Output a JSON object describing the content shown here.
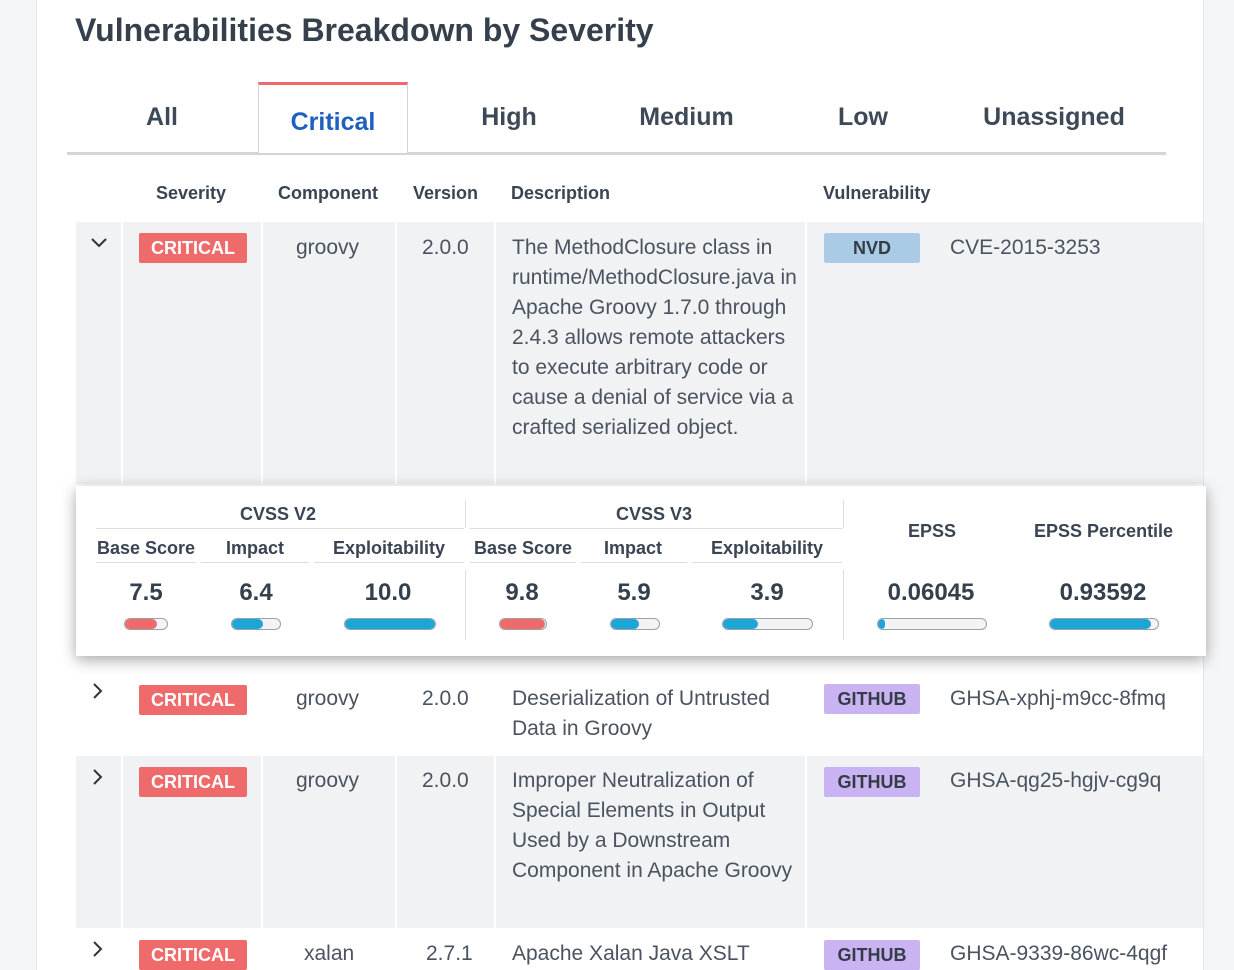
{
  "title": "Vulnerabilities Breakdown by Severity",
  "tabs": [
    {
      "label": "All"
    },
    {
      "label": "Critical"
    },
    {
      "label": "High"
    },
    {
      "label": "Medium"
    },
    {
      "label": "Low"
    },
    {
      "label": "Unassigned"
    }
  ],
  "columns": {
    "severity": "Severity",
    "component": "Component",
    "version": "Version",
    "description": "Description",
    "vulnerability": "Vulnerability"
  },
  "colors": {
    "critical": "#ef6b6b",
    "nvd": "#a9cbe5",
    "github": "#c9b3f2",
    "accent_tab": "#1f5fbf",
    "bar_blue": "#1ea5d8",
    "bar_red": "#ef6b6b"
  },
  "rows": [
    {
      "expanded": true,
      "severity": "CRITICAL",
      "component": "groovy",
      "version": "2.0.0",
      "description": "The MethodClosure class in runtime/MethodClosure.java in Apache Groovy 1.7.0 through 2.4.3 allows remote attackers to execute arbitrary code or cause a denial of service via a crafted serialized object.",
      "source": "NVD",
      "vuln_id": "CVE-2015-3253"
    },
    {
      "expanded": false,
      "severity": "CRITICAL",
      "component": "groovy",
      "version": "2.0.0",
      "description": "Deserialization of Untrusted Data in Groovy",
      "source": "GITHUB",
      "vuln_id": "GHSA-xphj-m9cc-8fmq"
    },
    {
      "expanded": false,
      "severity": "CRITICAL",
      "component": "groovy",
      "version": "2.0.0",
      "description": "Improper Neutralization of Special Elements in Output Used by a Downstream Component in Apache Groovy",
      "source": "GITHUB",
      "vuln_id": "GHSA-qg25-hgjv-cg9q"
    },
    {
      "expanded": false,
      "severity": "CRITICAL",
      "component": "xalan",
      "version": "2.7.1",
      "description": "Apache Xalan Java XSLT",
      "source": "GITHUB",
      "vuln_id": "GHSA-9339-86wc-4qgf"
    }
  ],
  "scores": {
    "cvss_v2": {
      "label": "CVSS V2",
      "base_label": "Base Score",
      "base": "7.5",
      "base_level": 0.75,
      "impact_label": "Impact",
      "impact": "6.4",
      "impact_level": 0.64,
      "expl_label": "Exploitability",
      "expl": "10.0",
      "expl_level": 1.0
    },
    "cvss_v3": {
      "label": "CVSS V3",
      "base_label": "Base Score",
      "base": "9.8",
      "base_level": 0.98,
      "impact_label": "Impact",
      "impact": "5.9",
      "impact_level": 0.59,
      "expl_label": "Exploitability",
      "expl": "3.9",
      "expl_level": 0.39
    },
    "epss": {
      "label": "EPSS",
      "value": "0.06045",
      "level": 0.06045
    },
    "epss_percentile": {
      "label": "EPSS Percentile",
      "value": "0.93592",
      "level": 0.93592
    }
  }
}
